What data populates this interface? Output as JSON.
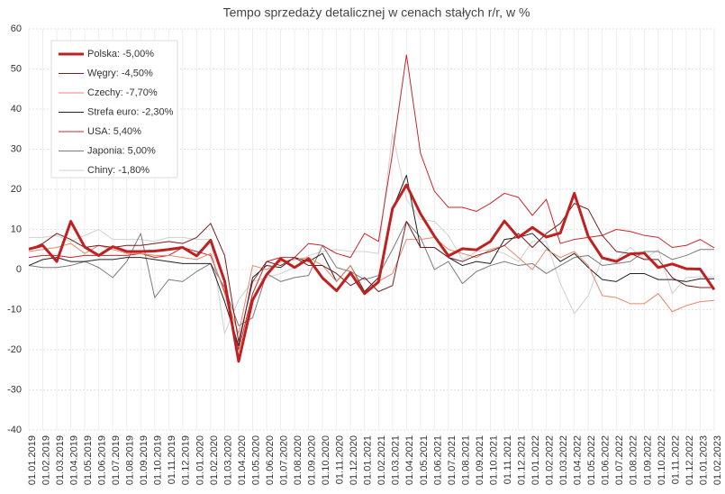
{
  "chart_data": {
    "type": "line",
    "title": "Tempo sprzedaży detalicznej w cenach stałych r/r, w %",
    "categories": [
      "01.01.2019",
      "01.02.2019",
      "01.03.2019",
      "01.04.2019",
      "01.05.2019",
      "01.06.2019",
      "01.07.2019",
      "01.08.2019",
      "01.09.2019",
      "01.10.2019",
      "01.11.2019",
      "01.12.2019",
      "01.01.2020",
      "01.02.2020",
      "01.03.2020",
      "01.04.2020",
      "01.05.2020",
      "01.06.2020",
      "01.07.2020",
      "01.08.2020",
      "01.09.2020",
      "01.10.2020",
      "01.11.2020",
      "01.12.2020",
      "01.01.2021",
      "01.02.2021",
      "01.03.2021",
      "01.04.2021",
      "01.05.2021",
      "01.06.2021",
      "01.07.2021",
      "01.08.2021",
      "01.09.2021",
      "01.10.2021",
      "01.11.2021",
      "01.12.2021",
      "01.01.2022",
      "01.02.2022",
      "01.03.2022",
      "01.04.2022",
      "01.05.2022",
      "01.06.2022",
      "01.07.2022",
      "01.08.2022",
      "01.09.2022",
      "01.10.2022",
      "01.11.2022",
      "01.12.2022",
      "01.01.2023",
      "01.02.2023"
    ],
    "series": [
      {
        "name": "Polska: -5,00%",
        "color": "#c0201f",
        "width": 3,
        "values": [
          5.1,
          6,
          2,
          12,
          5.6,
          3.5,
          5.7,
          4.5,
          4.5,
          4.6,
          5,
          5.5,
          3.4,
          7.3,
          -2.9,
          -22.9,
          -7.6,
          -1.3,
          2.7,
          0.5,
          2.7,
          -2.1,
          -5.3,
          -0.8,
          -6,
          -3.1,
          15.2,
          21.1,
          13.9,
          8.3,
          3.4,
          5.2,
          4.9,
          7,
          12.1,
          8,
          10.5,
          8.1,
          9.1,
          19,
          8.2,
          2.9,
          2,
          3.9,
          4.1,
          0.5,
          1.4,
          0.2,
          0.1,
          -5
        ]
      },
      {
        "name": "Węgry: -4,50%",
        "color": "#7a1d22",
        "width": 1,
        "values": [
          5,
          6.5,
          9,
          7.5,
          5.5,
          6,
          5.5,
          6,
          6,
          6.5,
          7,
          6.5,
          8,
          11.5,
          3.5,
          -18,
          -3,
          2,
          1,
          3,
          1,
          1,
          -1,
          -4,
          -2,
          -5.5,
          -4,
          12,
          5.5,
          5.5,
          3,
          2,
          3.5,
          4.5,
          6,
          9,
          5.5,
          9,
          11.5,
          16.5,
          15,
          8.5,
          4.5,
          4,
          2.5,
          2.5,
          -2,
          -4,
          -4.5,
          -4.5
        ]
      },
      {
        "name": "Czechy: -7,70%",
        "color": "#e8866c",
        "width": 1,
        "values": [
          4.5,
          5,
          5.5,
          6.5,
          4,
          6,
          5,
          4,
          4,
          3.5,
          3.5,
          3,
          2.5,
          4,
          -6,
          -16,
          1,
          0,
          2,
          2.5,
          3,
          1,
          -3,
          1,
          -6,
          -3,
          -1,
          7.5,
          7.5,
          8,
          5,
          4,
          3,
          5,
          6,
          3,
          0,
          5,
          3,
          4.5,
          1,
          -6.5,
          -7,
          -8.5,
          -8.5,
          -6,
          -10.5,
          -9,
          -8,
          -7.7
        ]
      },
      {
        "name": "Strefa euro: -2,30%",
        "color": "#222222",
        "width": 1,
        "values": [
          1,
          2.5,
          3,
          2,
          2,
          2.5,
          2.5,
          3,
          3,
          2.5,
          2,
          1.5,
          1.5,
          1.5,
          -8,
          -19,
          -2,
          1,
          0.5,
          3,
          2,
          4,
          -3,
          1,
          -5.5,
          -2,
          15,
          23.5,
          5.5,
          5.5,
          3,
          1,
          2,
          1.5,
          7.5,
          8,
          9,
          5.5,
          2,
          4,
          0.5,
          -2.5,
          -3,
          -1,
          -1,
          -2.5,
          -2.5,
          -3,
          -2.3,
          -2.3
        ]
      },
      {
        "name": "USA: 5,40%",
        "color": "#c8262a",
        "width": 1,
        "values": [
          3,
          3.5,
          3.5,
          3,
          3.5,
          3.5,
          3.5,
          3.5,
          4,
          3,
          3.5,
          5.5,
          4.5,
          3.5,
          -5.5,
          -20,
          -6,
          2,
          3,
          3,
          6.5,
          6,
          4,
          3,
          9,
          7,
          29,
          53.5,
          29,
          19.5,
          15.5,
          15.5,
          14.5,
          16.5,
          19,
          18,
          13.5,
          17.5,
          6.5,
          7.5,
          8,
          8.5,
          10,
          9.5,
          8.5,
          8,
          5.5,
          6,
          7.5,
          5.4
        ]
      },
      {
        "name": "Japonia: 5,00%",
        "color": "#7b7b7b",
        "width": 1,
        "values": [
          1,
          0.5,
          0.5,
          1,
          2,
          0.5,
          -2,
          2,
          9,
          -7,
          -2.5,
          -3,
          -0.5,
          1.5,
          -4.5,
          -14,
          -12,
          -1,
          -3,
          -2,
          -1.5,
          6,
          0.5,
          -0.5,
          -2.5,
          -1.5,
          5,
          12,
          8,
          0,
          2,
          -3.5,
          -0.5,
          1,
          2,
          1,
          1.5,
          -1,
          1,
          3,
          3.5,
          1,
          1.5,
          2,
          4.5,
          4.5,
          2.5,
          3.5,
          5,
          5
        ]
      },
      {
        "name": "Chiny: -1,80%",
        "color": "#d0d0d0",
        "width": 1,
        "values": [
          8,
          8,
          8.5,
          7,
          8.5,
          10,
          7.5,
          7.5,
          7.5,
          7,
          8,
          8,
          7.5,
          7.5,
          -16,
          -7.5,
          -3,
          -2,
          -1,
          0.5,
          3.5,
          4.5,
          5,
          4.5,
          4.5,
          4,
          34,
          17.5,
          12.5,
          12,
          8.5,
          2.5,
          4.5,
          5,
          4,
          2,
          7,
          7,
          -3.5,
          -11,
          -6.5,
          3,
          2.5,
          5.5,
          2.5,
          5,
          -6,
          -2,
          -1.8,
          -1.8
        ]
      }
    ],
    "ylim": [
      -40,
      60
    ],
    "yticks": [
      -40,
      -30,
      -20,
      -10,
      0,
      10,
      20,
      30,
      40,
      50,
      60
    ],
    "grid": true,
    "legend": "upper left"
  }
}
